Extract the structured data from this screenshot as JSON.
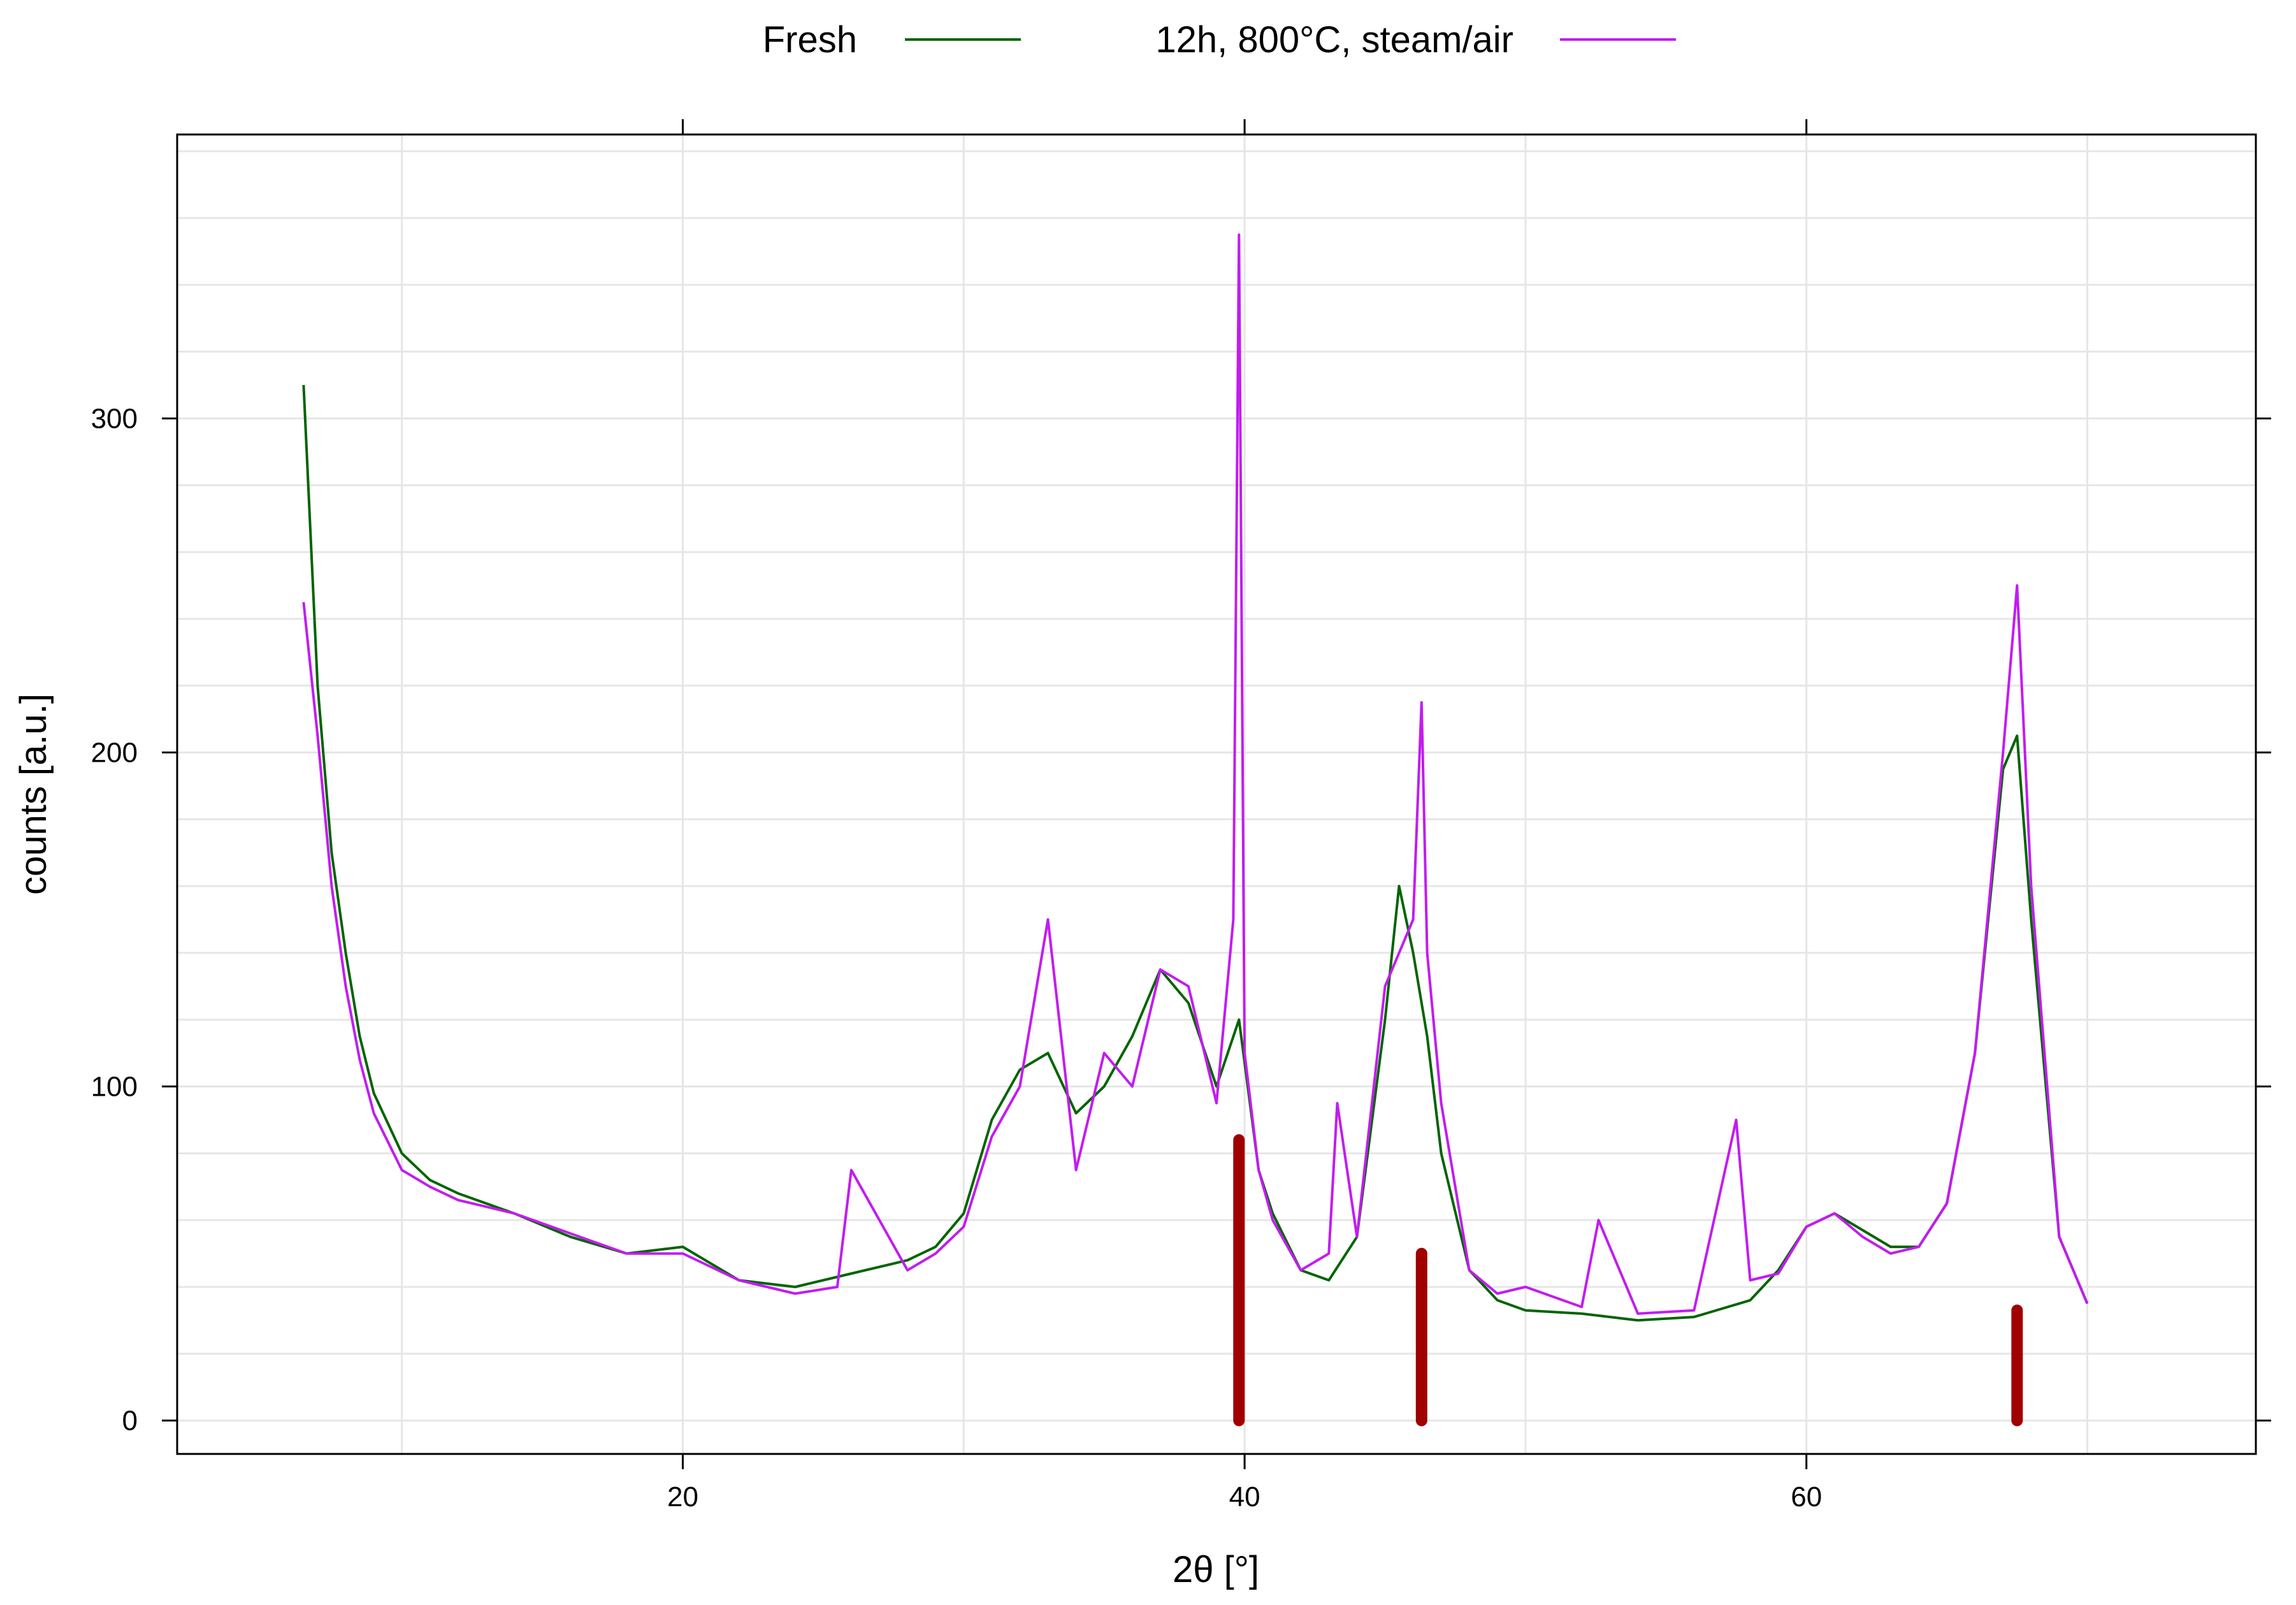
{
  "chart_data": {
    "type": "line",
    "xlabel": "2θ  [°]",
    "ylabel": "counts [a.u.]",
    "xlim": [
      2,
      76
    ],
    "ylim": [
      -10,
      385
    ],
    "grid": true,
    "legend_position": "top",
    "x_ticks": [
      20,
      40,
      60
    ],
    "x_tick_labels": [
      "20",
      "40",
      "60"
    ],
    "y_ticks": [
      0,
      100,
      200,
      300
    ],
    "y_tick_labels": [
      "0",
      "100",
      "200",
      "300"
    ],
    "series": [
      {
        "name": "Fresh",
        "color": "#006400",
        "x": [
          6.5,
          7.0,
          7.5,
          8.0,
          8.5,
          9.0,
          10.0,
          11.0,
          12.0,
          14.0,
          16.0,
          18.0,
          20.0,
          22.0,
          24.0,
          26.0,
          28.0,
          29.0,
          30.0,
          31.0,
          32.0,
          33.0,
          34.0,
          35.0,
          36.0,
          37.0,
          38.0,
          39.0,
          39.8,
          40.5,
          41.0,
          42.0,
          43.0,
          44.0,
          45.0,
          45.5,
          46.0,
          46.5,
          47.0,
          48.0,
          49.0,
          50.0,
          52.0,
          54.0,
          56.0,
          58.0,
          59.0,
          60.0,
          61.0,
          62.0,
          63.0,
          64.0,
          65.0,
          66.0,
          67.0,
          67.5,
          68.0,
          69.0,
          70.0
        ],
        "y": [
          310,
          220,
          170,
          140,
          115,
          98,
          80,
          72,
          68,
          62,
          55,
          50,
          52,
          42,
          40,
          44,
          48,
          52,
          62,
          90,
          105,
          110,
          92,
          100,
          115,
          135,
          125,
          100,
          120,
          75,
          62,
          45,
          42,
          55,
          120,
          160,
          140,
          115,
          80,
          45,
          36,
          33,
          32,
          30,
          31,
          36,
          45,
          58,
          62,
          57,
          52,
          52,
          65,
          110,
          195,
          205,
          150,
          55,
          35
        ]
      },
      {
        "name": "12h, 800°C, steam/air",
        "color": "#c21cf0",
        "x": [
          6.5,
          7.0,
          7.5,
          8.0,
          8.5,
          9.0,
          10.0,
          11.0,
          12.0,
          14.0,
          16.0,
          18.0,
          20.0,
          22.0,
          24.0,
          25.5,
          26.0,
          28.0,
          29.0,
          30.0,
          31.0,
          32.0,
          33.0,
          34.0,
          35.0,
          36.0,
          37.0,
          38.0,
          39.0,
          39.6,
          39.8,
          40.0,
          40.5,
          41.0,
          42.0,
          43.0,
          43.3,
          44.0,
          45.0,
          46.0,
          46.3,
          46.5,
          47.0,
          48.0,
          49.0,
          50.0,
          52.0,
          52.6,
          54.0,
          56.0,
          57.5,
          58.0,
          59.0,
          60.0,
          61.0,
          62.0,
          63.0,
          64.0,
          65.0,
          66.0,
          67.0,
          67.5,
          68.0,
          69.0,
          70.0
        ],
        "y": [
          245,
          205,
          160,
          130,
          108,
          92,
          75,
          70,
          66,
          62,
          56,
          50,
          50,
          42,
          38,
          40,
          75,
          45,
          50,
          58,
          85,
          100,
          150,
          75,
          110,
          100,
          135,
          130,
          95,
          150,
          355,
          110,
          75,
          60,
          45,
          50,
          95,
          55,
          130,
          150,
          215,
          140,
          95,
          45,
          38,
          40,
          34,
          60,
          32,
          33,
          90,
          42,
          44,
          58,
          62,
          55,
          50,
          52,
          65,
          110,
          200,
          250,
          160,
          55,
          35
        ]
      }
    ],
    "reference_lines": {
      "color": "#a00000",
      "x": [
        39.8,
        46.3,
        67.5
      ],
      "y": [
        84,
        50,
        33
      ]
    }
  }
}
